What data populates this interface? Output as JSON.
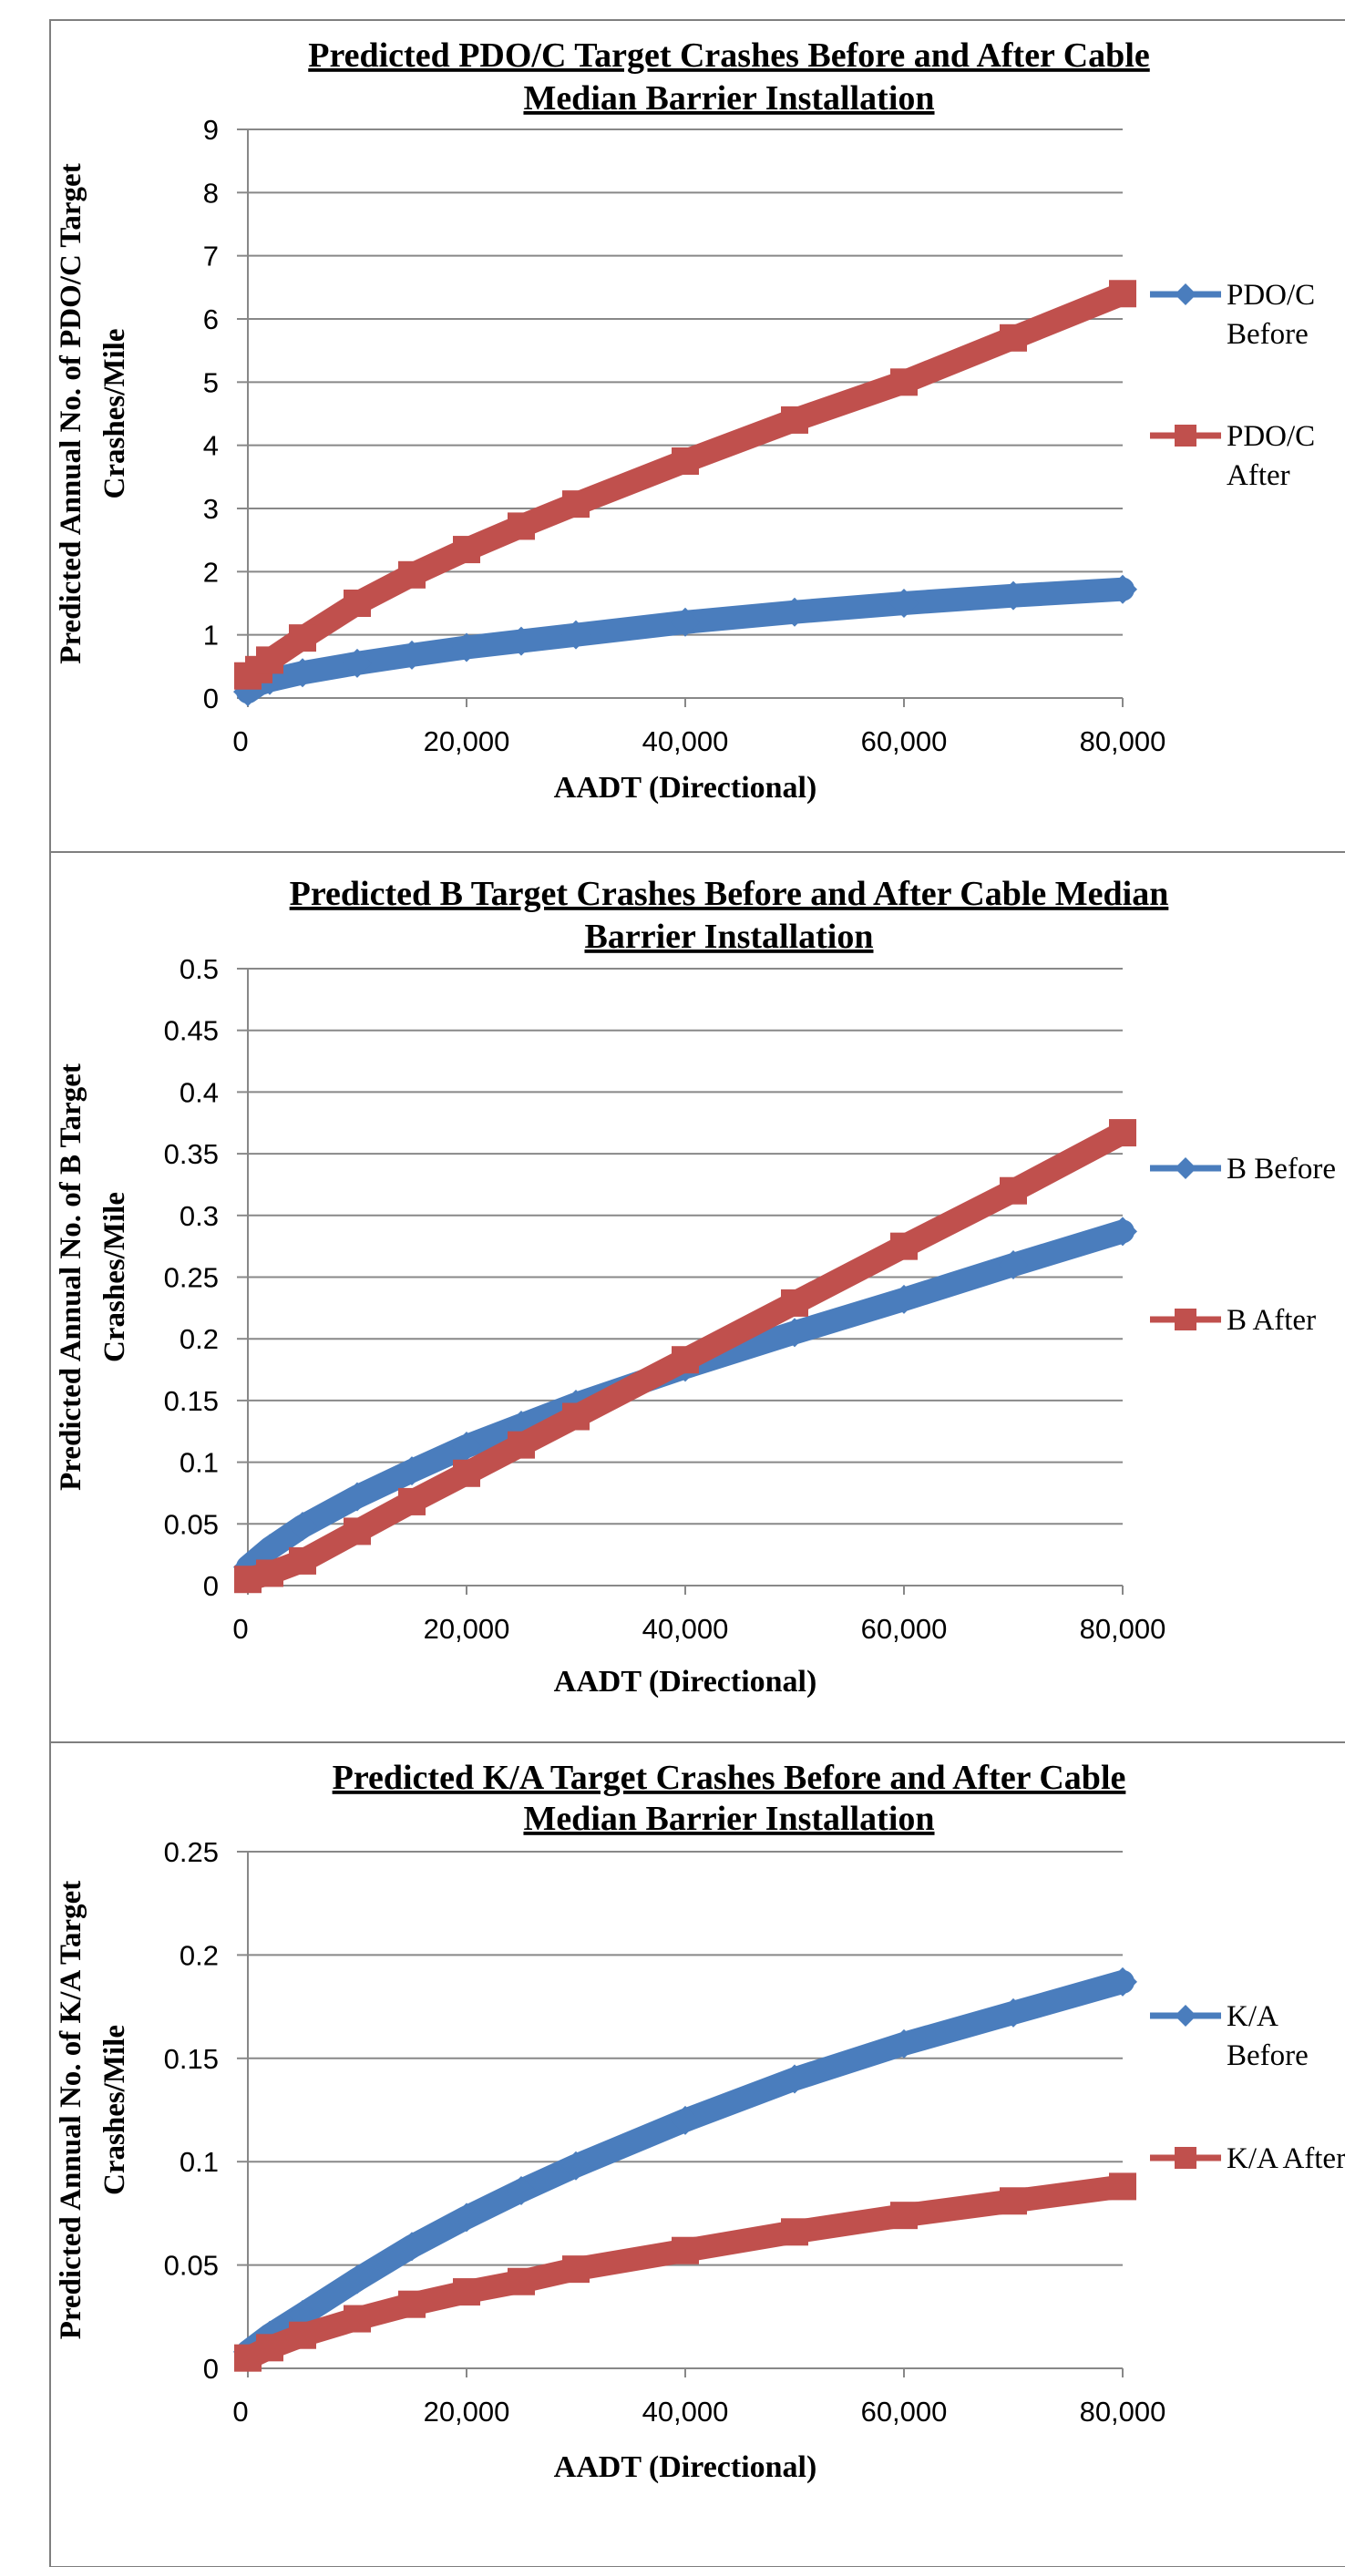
{
  "colors": {
    "before": "#4a7dbd",
    "after": "#c0504d",
    "grid": "#888888",
    "frame": "#7f7f7f",
    "text": "#000000"
  },
  "chart_data": [
    {
      "type": "line",
      "title": [
        "Predicted PDO/C Target Crashes Before and After Cable",
        "Median Barrier Installation"
      ],
      "xlabel": "AADT (Directional)",
      "ylabel": [
        "Predicted Annual No. of PDO/C Target",
        "Crashes/Mile"
      ],
      "xlim": [
        0,
        80000
      ],
      "ylim": [
        0,
        9
      ],
      "xticks": [
        0,
        20000,
        40000,
        60000,
        80000
      ],
      "xtick_labels": [
        "0",
        "20,000",
        "40,000",
        "60,000",
        "80,000"
      ],
      "yticks": [
        0,
        1,
        2,
        3,
        4,
        5,
        6,
        7,
        8,
        9
      ],
      "ytick_labels": [
        "0",
        "1",
        "2",
        "3",
        "4",
        "5",
        "6",
        "7",
        "8",
        "9"
      ],
      "grid": true,
      "legend_position": "right",
      "series": [
        {
          "name": [
            "PDO/C",
            "Before"
          ],
          "marker": "diamond",
          "x": [
            0,
            1000,
            2000,
            5000,
            10000,
            15000,
            20000,
            25000,
            30000,
            40000,
            50000,
            60000,
            70000,
            80000
          ],
          "y": [
            0.1,
            0.22,
            0.28,
            0.4,
            0.55,
            0.68,
            0.8,
            0.9,
            1.0,
            1.2,
            1.36,
            1.5,
            1.62,
            1.72
          ]
        },
        {
          "name": [
            "PDO/C",
            "After"
          ],
          "marker": "square",
          "x": [
            0,
            1000,
            2000,
            5000,
            10000,
            15000,
            20000,
            25000,
            30000,
            40000,
            50000,
            60000,
            70000,
            80000
          ],
          "y": [
            0.35,
            0.45,
            0.6,
            0.95,
            1.5,
            1.95,
            2.35,
            2.72,
            3.07,
            3.75,
            4.4,
            5.0,
            5.7,
            6.4
          ]
        }
      ]
    },
    {
      "type": "line",
      "title": [
        "Predicted B Target Crashes Before and After Cable Median",
        "Barrier Installation"
      ],
      "xlabel": "AADT (Directional)",
      "ylabel": [
        "Predicted Annual No. of B Target",
        "Crashes/Mile"
      ],
      "xlim": [
        0,
        80000
      ],
      "ylim": [
        0,
        0.5
      ],
      "xticks": [
        0,
        20000,
        40000,
        60000,
        80000
      ],
      "xtick_labels": [
        "0",
        "20,000",
        "40,000",
        "60,000",
        "80,000"
      ],
      "yticks": [
        0,
        0.05,
        0.1,
        0.15,
        0.2,
        0.25,
        0.3,
        0.35,
        0.4,
        0.45,
        0.5
      ],
      "ytick_labels": [
        "0",
        "0.05",
        "0.1",
        "0.15",
        "0.2",
        "0.25",
        "0.3",
        "0.35",
        "0.4",
        "0.45",
        "0.5"
      ],
      "grid": true,
      "legend_position": "right",
      "series": [
        {
          "name": [
            "B Before"
          ],
          "marker": "diamond",
          "x": [
            0,
            2000,
            5000,
            10000,
            15000,
            20000,
            25000,
            30000,
            40000,
            50000,
            60000,
            70000,
            80000
          ],
          "y": [
            0.015,
            0.03,
            0.048,
            0.072,
            0.093,
            0.113,
            0.13,
            0.147,
            0.177,
            0.205,
            0.232,
            0.26,
            0.287
          ]
        },
        {
          "name": [
            "B After"
          ],
          "marker": "square",
          "x": [
            0,
            2000,
            5000,
            10000,
            15000,
            20000,
            25000,
            30000,
            40000,
            50000,
            60000,
            70000,
            80000
          ],
          "y": [
            0.005,
            0.01,
            0.02,
            0.044,
            0.068,
            0.091,
            0.114,
            0.137,
            0.183,
            0.229,
            0.275,
            0.32,
            0.367
          ]
        }
      ]
    },
    {
      "type": "line",
      "title": [
        "Predicted K/A Target Crashes Before and After Cable",
        "Median Barrier Installation"
      ],
      "xlabel": "AADT (Directional)",
      "ylabel": [
        "Predicted Annual No. of K/A Target",
        "Crashes/Mile"
      ],
      "xlim": [
        0,
        80000
      ],
      "ylim": [
        0,
        0.25
      ],
      "xticks": [
        0,
        20000,
        40000,
        60000,
        80000
      ],
      "xtick_labels": [
        "0",
        "20,000",
        "40,000",
        "60,000",
        "80,000"
      ],
      "yticks": [
        0,
        0.05,
        0.1,
        0.15,
        0.2,
        0.25
      ],
      "ytick_labels": [
        "0",
        "0.05",
        "0.1",
        "0.15",
        "0.2",
        "0.25"
      ],
      "grid": true,
      "legend_position": "right",
      "series": [
        {
          "name": [
            "K/A",
            "Before"
          ],
          "marker": "diamond",
          "x": [
            0,
            2000,
            5000,
            10000,
            15000,
            20000,
            25000,
            30000,
            40000,
            50000,
            60000,
            70000,
            80000
          ],
          "y": [
            0.008,
            0.016,
            0.026,
            0.043,
            0.059,
            0.073,
            0.086,
            0.098,
            0.12,
            0.14,
            0.157,
            0.172,
            0.187
          ]
        },
        {
          "name": [
            "K/A After"
          ],
          "marker": "square",
          "x": [
            0,
            2000,
            5000,
            10000,
            15000,
            20000,
            25000,
            30000,
            40000,
            50000,
            60000,
            70000,
            80000
          ],
          "y": [
            0.005,
            0.01,
            0.016,
            0.024,
            0.031,
            0.037,
            0.042,
            0.048,
            0.057,
            0.066,
            0.074,
            0.081,
            0.088
          ]
        }
      ]
    }
  ]
}
